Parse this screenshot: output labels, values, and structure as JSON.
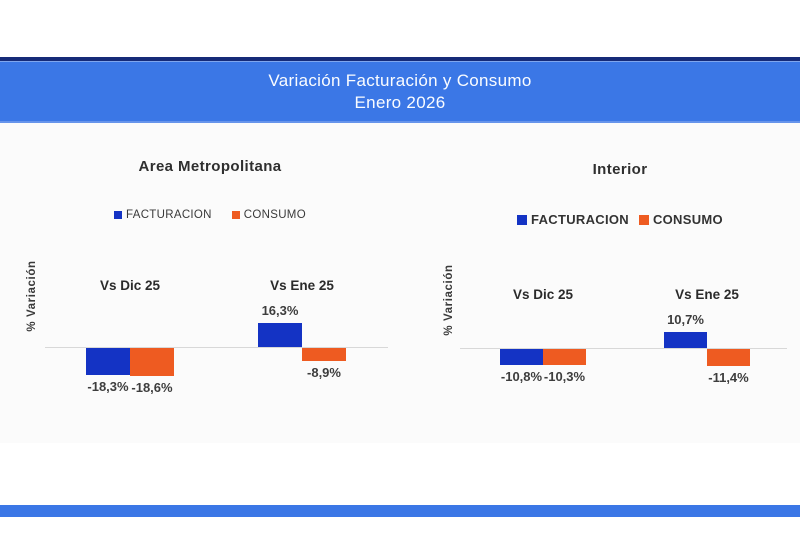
{
  "banner": {
    "line1": "Variación Facturación y Consumo",
    "line2": "Enero 2026"
  },
  "colors": {
    "banner_blue": "#3b77e6",
    "banner_border_navy": "#152a78",
    "facturacion_blue": "#1433c4",
    "consumo_orange": "#ee5b21",
    "baseline_gray": "#d8d8d8",
    "banner_text": "#fafcff"
  },
  "chart_data": [
    {
      "type": "bar",
      "title": "Area Metropolitana",
      "ylabel": "% Variación",
      "categories": [
        "Vs Dic 25",
        "Vs Ene 25"
      ],
      "baseline": 0,
      "legend_position": "top",
      "grid": false,
      "series": [
        {
          "name": "FACTURACION",
          "values": [
            -18.3,
            16.3
          ],
          "value_labels": [
            "-18,3%",
            "16,3%"
          ],
          "color": "#1433c4"
        },
        {
          "name": "CONSUMO",
          "values": [
            -18.6,
            -8.9
          ],
          "value_labels": [
            "-18,6%",
            "-8,9%"
          ],
          "color": "#ee5b21"
        }
      ]
    },
    {
      "type": "bar",
      "title": "Interior",
      "ylabel": "% Variación",
      "categories": [
        "Vs Dic 25",
        "Vs Ene 25"
      ],
      "baseline": 0,
      "legend_position": "top",
      "grid": false,
      "series": [
        {
          "name": "FACTURACION",
          "values": [
            -10.8,
            10.7
          ],
          "value_labels": [
            "-10,8%",
            "10,7%"
          ],
          "color": "#1433c4"
        },
        {
          "name": "CONSUMO",
          "values": [
            -10.3,
            -11.4
          ],
          "value_labels": [
            "-10,3%",
            "-11,4%"
          ],
          "color": "#ee5b21"
        }
      ]
    }
  ]
}
